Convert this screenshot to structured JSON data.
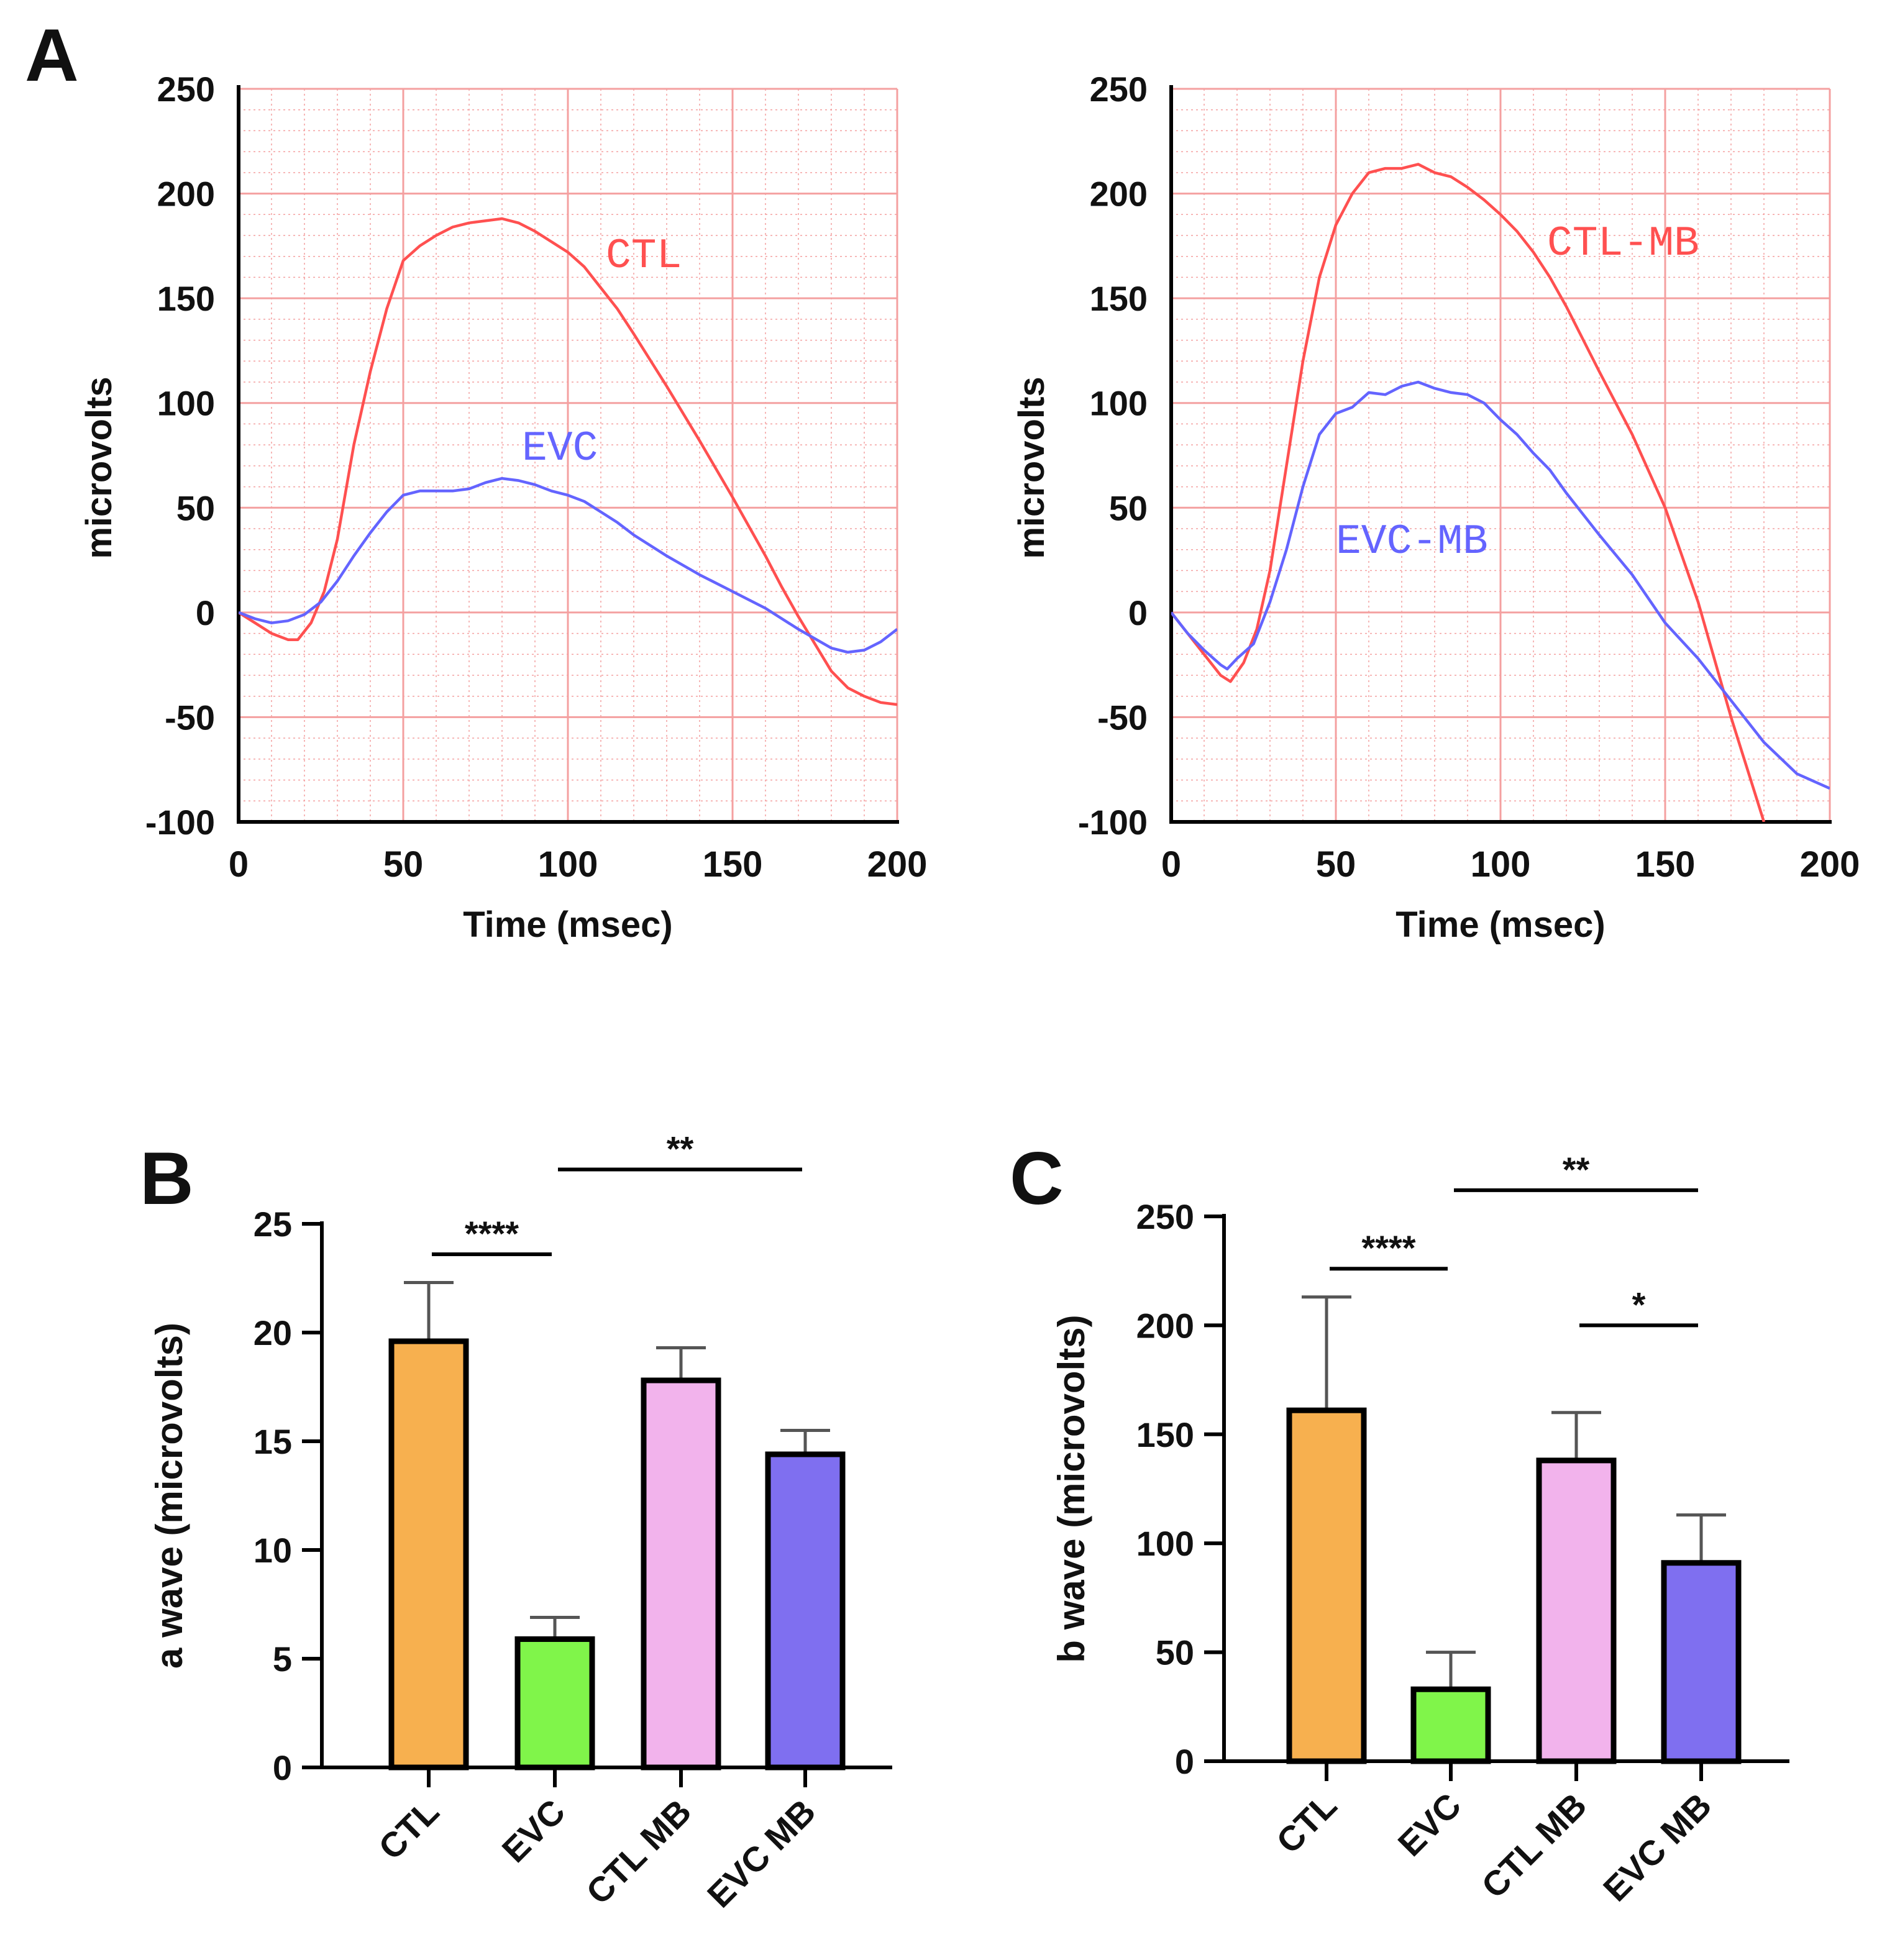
{
  "figure": {
    "panel_labels": [
      "A",
      "B",
      "C"
    ]
  },
  "chart_data": [
    {
      "panel": "A-left",
      "type": "line",
      "xlabel": "Time (msec)",
      "ylabel": "microvolts",
      "xlim": [
        0,
        200
      ],
      "ylim": [
        -100,
        250
      ],
      "xticks": [
        0,
        50,
        100,
        150,
        200
      ],
      "yticks": [
        -100,
        -50,
        0,
        50,
        100,
        150,
        200,
        250
      ],
      "grid": true,
      "series": [
        {
          "name": "CTL",
          "color": "#ff5050",
          "x": [
            0,
            5,
            10,
            15,
            18,
            22,
            26,
            30,
            35,
            40,
            45,
            50,
            55,
            60,
            65,
            70,
            75,
            80,
            85,
            90,
            95,
            100,
            105,
            110,
            115,
            120,
            130,
            140,
            150,
            160,
            165,
            170,
            175,
            180,
            185,
            190,
            195,
            200
          ],
          "y": [
            0,
            -5,
            -10,
            -13,
            -13,
            -5,
            10,
            35,
            80,
            115,
            145,
            168,
            175,
            180,
            184,
            186,
            187,
            188,
            186,
            182,
            177,
            172,
            165,
            155,
            145,
            133,
            108,
            82,
            55,
            27,
            12,
            -2,
            -15,
            -28,
            -36,
            -40,
            -43,
            -44
          ]
        },
        {
          "name": "EVC",
          "color": "#6464ff",
          "x": [
            0,
            5,
            10,
            15,
            20,
            25,
            30,
            35,
            40,
            45,
            50,
            55,
            60,
            65,
            70,
            75,
            80,
            85,
            90,
            95,
            100,
            105,
            110,
            115,
            120,
            130,
            140,
            150,
            160,
            170,
            180,
            185,
            190,
            195,
            200
          ],
          "y": [
            0,
            -3,
            -5,
            -4,
            -1,
            5,
            15,
            27,
            38,
            48,
            56,
            58,
            58,
            58,
            59,
            62,
            64,
            63,
            61,
            58,
            56,
            53,
            48,
            43,
            37,
            27,
            18,
            10,
            2,
            -8,
            -17,
            -19,
            -18,
            -14,
            -8
          ]
        }
      ],
      "annotations": [
        "CTL",
        "EVC"
      ]
    },
    {
      "panel": "A-right",
      "type": "line",
      "xlabel": "Time (msec)",
      "ylabel": "microvolts",
      "xlim": [
        0,
        200
      ],
      "ylim": [
        -100,
        250
      ],
      "xticks": [
        0,
        50,
        100,
        150,
        200
      ],
      "yticks": [
        -100,
        -50,
        0,
        50,
        100,
        150,
        200,
        250
      ],
      "grid": true,
      "series": [
        {
          "name": "CTL-MB",
          "color": "#ff5050",
          "x": [
            0,
            5,
            10,
            15,
            18,
            22,
            26,
            30,
            35,
            40,
            45,
            50,
            55,
            60,
            65,
            70,
            75,
            80,
            85,
            90,
            95,
            100,
            105,
            110,
            115,
            120,
            130,
            140,
            150,
            160,
            170,
            180
          ],
          "y": [
            0,
            -10,
            -20,
            -30,
            -33,
            -24,
            -8,
            20,
            70,
            120,
            160,
            185,
            200,
            210,
            212,
            212,
            214,
            210,
            208,
            203,
            197,
            190,
            182,
            172,
            160,
            146,
            115,
            85,
            50,
            5,
            -50,
            -100
          ]
        },
        {
          "name": "EVC-MB",
          "color": "#6464ff",
          "x": [
            0,
            5,
            10,
            15,
            17,
            20,
            25,
            30,
            35,
            40,
            45,
            50,
            55,
            60,
            65,
            70,
            75,
            80,
            85,
            90,
            95,
            100,
            105,
            110,
            115,
            120,
            130,
            140,
            150,
            160,
            170,
            180,
            190,
            200
          ],
          "y": [
            0,
            -10,
            -18,
            -25,
            -27,
            -22,
            -15,
            5,
            30,
            60,
            85,
            95,
            98,
            105,
            104,
            108,
            110,
            107,
            105,
            104,
            100,
            92,
            85,
            76,
            68,
            57,
            37,
            18,
            -5,
            -22,
            -42,
            -62,
            -77,
            -84
          ]
        }
      ],
      "annotations": [
        "CTL-MB",
        "EVC-MB"
      ]
    },
    {
      "panel": "B",
      "type": "bar",
      "ylabel": "a wave (microvolts)",
      "ylim": [
        0,
        25
      ],
      "yticks": [
        0,
        5,
        10,
        15,
        20,
        25
      ],
      "categories": [
        "CTL",
        "EVC",
        "CTL MB",
        "EVC MB"
      ],
      "values": [
        19.6,
        5.9,
        17.8,
        14.4
      ],
      "errors": [
        2.7,
        1.0,
        1.5,
        1.1
      ],
      "colors": [
        "#f7b04f",
        "#80f54a",
        "#f2b3ec",
        "#7f6ff0"
      ],
      "significance": [
        {
          "from": 0,
          "to": 1,
          "label": "****",
          "y": 23.6
        },
        {
          "from": 1,
          "to": 3,
          "label": "**",
          "y": 27.5
        }
      ]
    },
    {
      "panel": "C",
      "type": "bar",
      "ylabel": "b wave (microvolts)",
      "ylim": [
        0,
        250
      ],
      "yticks": [
        0,
        50,
        100,
        150,
        200,
        250
      ],
      "categories": [
        "CTL",
        "EVC",
        "CTL MB",
        "EVC MB"
      ],
      "values": [
        161,
        33,
        138,
        91
      ],
      "errors": [
        52,
        17,
        22,
        22
      ],
      "colors": [
        "#f7b04f",
        "#80f54a",
        "#f2b3ec",
        "#7f6ff0"
      ],
      "significance": [
        {
          "from": 0,
          "to": 1,
          "label": "****",
          "y": 226
        },
        {
          "from": 2,
          "to": 3,
          "label": "*",
          "y": 200
        },
        {
          "from": 1,
          "to": 3,
          "label": "**",
          "y": 262
        }
      ]
    }
  ]
}
